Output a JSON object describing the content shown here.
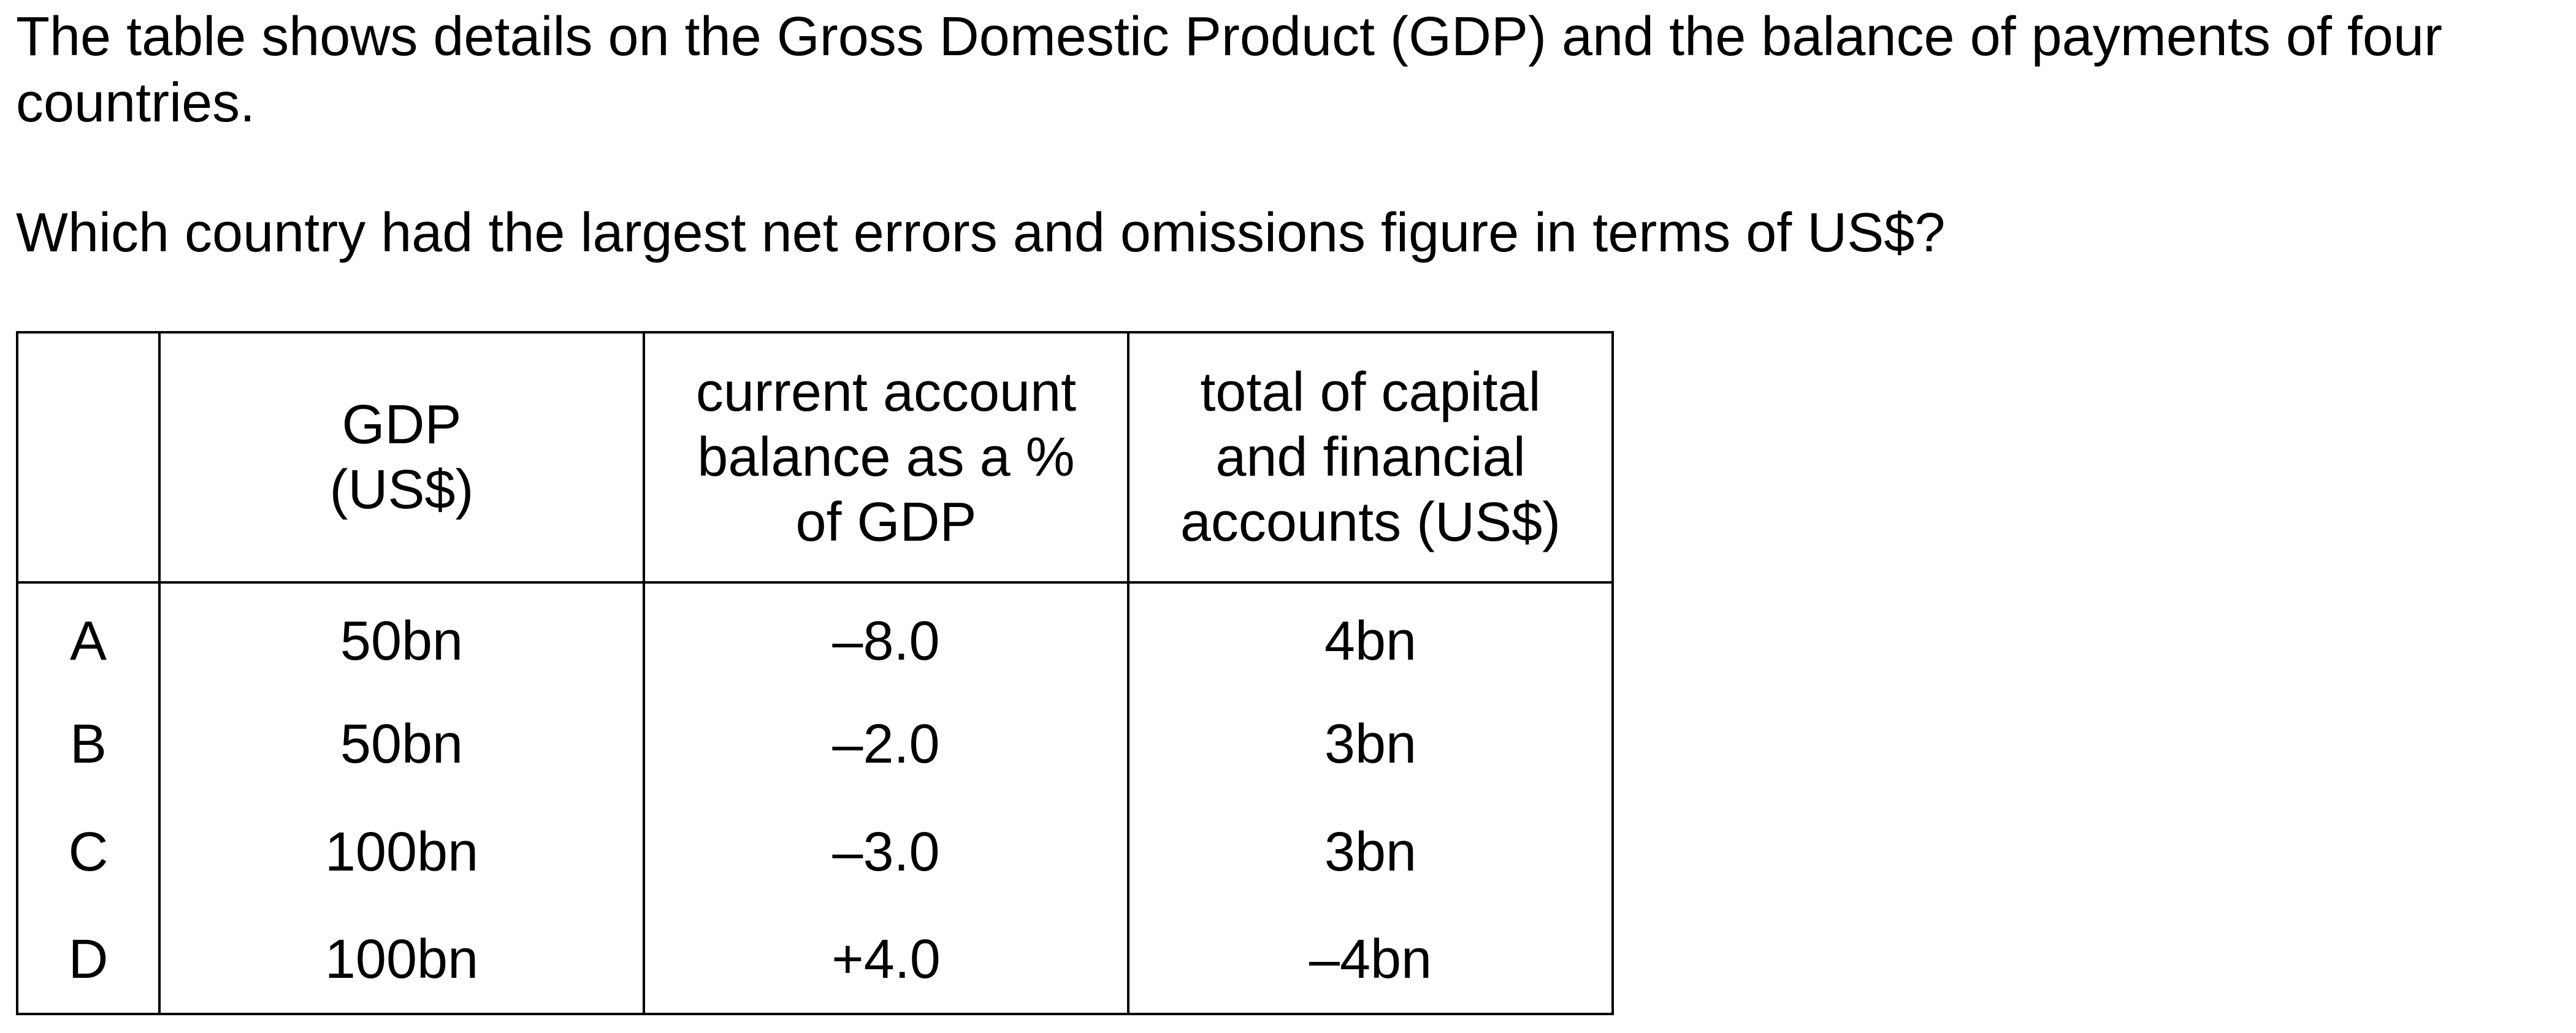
{
  "question": {
    "intro": "The table shows details on the Gross Domestic Product (GDP) and the balance of payments of four countries.",
    "prompt": "Which country had the largest net errors and omissions figure in terms of US$?"
  },
  "table": {
    "headers": {
      "letter": "",
      "gdp_line1": "GDP",
      "gdp_line2": "(US$)",
      "cab_line1": "current account",
      "cab_line2": "balance as a %",
      "cab_line3": "of GDP",
      "cap_line1": "total of capital",
      "cap_line2": "and financial",
      "cap_line3": "accounts (US$)"
    },
    "rows": [
      {
        "letter": "A",
        "gdp": "50bn",
        "current_account_pct": "–8.0",
        "capital_financial": "4bn"
      },
      {
        "letter": "B",
        "gdp": "50bn",
        "current_account_pct": "–2.0",
        "capital_financial": "3bn"
      },
      {
        "letter": "C",
        "gdp": "100bn",
        "current_account_pct": "–3.0",
        "capital_financial": "3bn"
      },
      {
        "letter": "D",
        "gdp": "100bn",
        "current_account_pct": "+4.0",
        "capital_financial": "–4bn"
      }
    ]
  }
}
